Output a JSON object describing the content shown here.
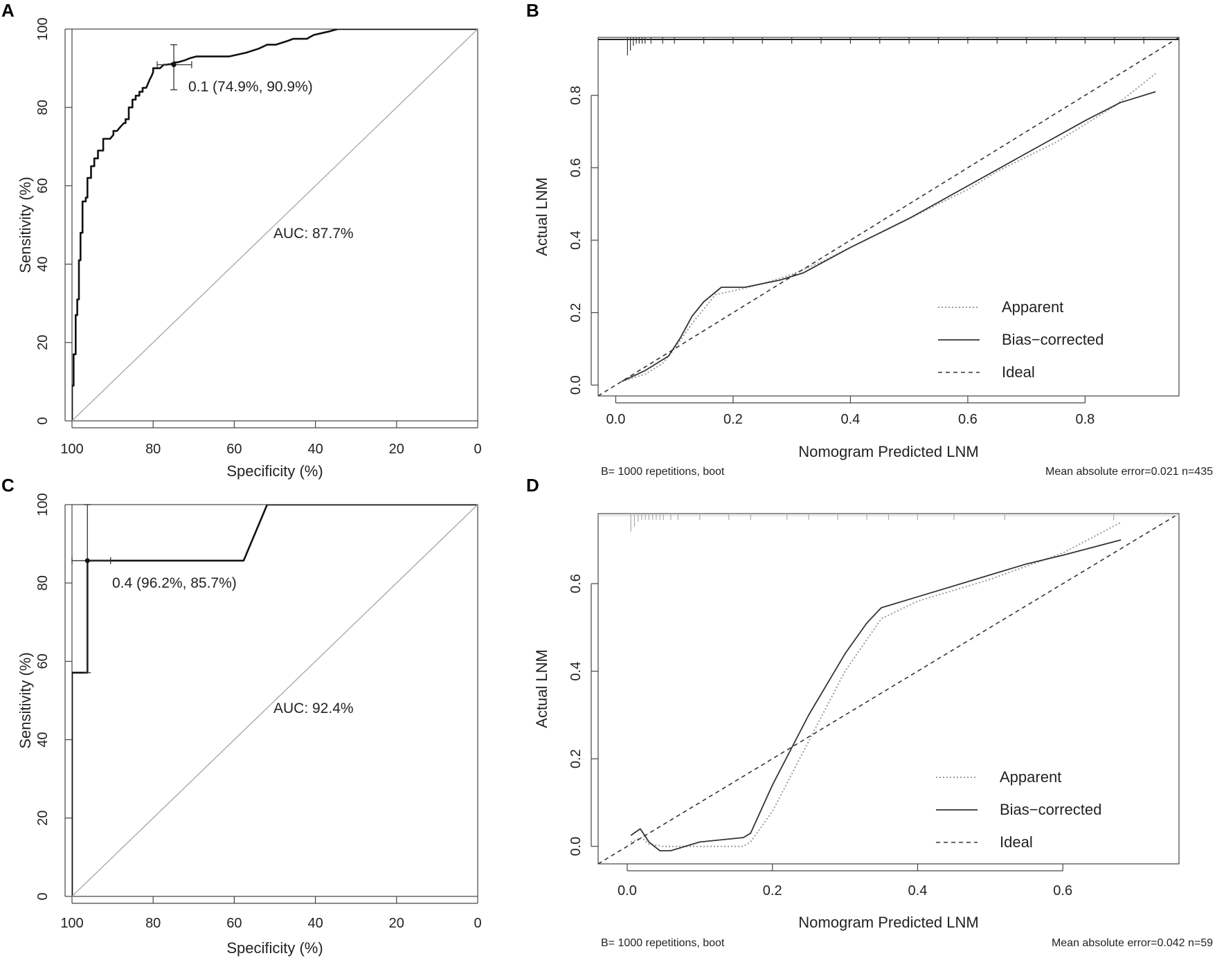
{
  "chart_data": [
    {
      "panel": "A",
      "type": "line",
      "xlabel": "Specificity (%)",
      "ylabel": "Sensitivity (%)",
      "xlim": [
        100,
        0
      ],
      "ylim": [
        0,
        100
      ],
      "x_ticks": [
        "100",
        "80",
        "60",
        "40",
        "20",
        "0"
      ],
      "y_ticks": [
        "0",
        "20",
        "40",
        "60",
        "80",
        "100"
      ],
      "series": [
        {
          "name": "ROC",
          "style": "solid",
          "x": [
            100,
            100,
            99.6,
            99.6,
            99.1,
            99.1,
            98.7,
            98.7,
            98.3,
            98.3,
            97.9,
            97.9,
            97.4,
            97.4,
            96.6,
            96.6,
            96.2,
            96.2,
            95.3,
            95.3,
            94.5,
            94.5,
            93.6,
            93.6,
            92.3,
            92.3,
            90.6,
            89.8,
            89.8,
            88.9,
            88.1,
            87.2,
            86.8,
            86.8,
            86.0,
            86.0,
            85.1,
            85.1,
            84.3,
            84.3,
            83.4,
            83.4,
            82.6,
            82.6,
            81.7,
            81.3,
            80.9,
            80.4,
            80.0,
            80.0,
            78.3,
            77.4,
            76.6,
            76.2,
            75.7,
            74.9,
            74.0,
            72.3,
            71.1,
            69.4,
            61.3,
            57.0,
            54.0,
            51.9,
            49.8,
            46.8,
            45.5,
            42.1,
            41.3,
            40.4,
            38.3,
            36.2,
            34.5,
            0
          ],
          "y": [
            0,
            9,
            9,
            17,
            17,
            27,
            27,
            31,
            31,
            41,
            41,
            48,
            48,
            56,
            56,
            57,
            57,
            62,
            62,
            65,
            65,
            67,
            67,
            69,
            69,
            72,
            72,
            73,
            74,
            74,
            75,
            76,
            76,
            77,
            77,
            80,
            80,
            82,
            82,
            83,
            83,
            84,
            84,
            85,
            85,
            86,
            87,
            88,
            89,
            90,
            90,
            90.9,
            90.9,
            91,
            91,
            91.5,
            91.5,
            92,
            92.5,
            93,
            93,
            94,
            95,
            96,
            96,
            97,
            97.5,
            97.5,
            98,
            98.5,
            99,
            99.5,
            100,
            100
          ]
        },
        {
          "name": "Reference",
          "style": "diagonal",
          "x": [
            100,
            0
          ],
          "y": [
            0,
            100
          ]
        }
      ],
      "threshold_point": {
        "x": 74.9,
        "y": 90.9,
        "x_ci": [
          79.0,
          70.5
        ],
        "y_ci": [
          84.5,
          96.0
        ]
      },
      "annotations": {
        "threshold": "0.1 (74.9%, 90.9%)",
        "auc": "AUC: 87.7%"
      }
    },
    {
      "panel": "B",
      "type": "line",
      "xlabel": "Nomogram Predicted LNM",
      "ylabel": "Actual LNM",
      "xlim": [
        -0.03,
        0.96
      ],
      "ylim": [
        -0.03,
        0.96
      ],
      "x_ticks": [
        "0.0",
        "0.2",
        "0.4",
        "0.6",
        "0.8"
      ],
      "y_ticks": [
        "0.0",
        "0.2",
        "0.4",
        "0.6",
        "0.8"
      ],
      "series": [
        {
          "name": "Apparent",
          "style": "dotted",
          "x": [
            0.01,
            0.05,
            0.08,
            0.1,
            0.13,
            0.17,
            0.2,
            0.25,
            0.3,
            0.35,
            0.4,
            0.45,
            0.5,
            0.55,
            0.6,
            0.65,
            0.7,
            0.75,
            0.8,
            0.85,
            0.92
          ],
          "y": [
            0.01,
            0.03,
            0.06,
            0.1,
            0.17,
            0.25,
            0.26,
            0.28,
            0.305,
            0.34,
            0.38,
            0.42,
            0.46,
            0.5,
            0.54,
            0.59,
            0.63,
            0.67,
            0.72,
            0.77,
            0.86
          ]
        },
        {
          "name": "Bias-corrected",
          "style": "solid",
          "x": [
            0.01,
            0.05,
            0.09,
            0.11,
            0.13,
            0.15,
            0.18,
            0.22,
            0.28,
            0.32,
            0.4,
            0.5,
            0.6,
            0.7,
            0.8,
            0.86,
            0.92
          ],
          "y": [
            0.01,
            0.04,
            0.08,
            0.13,
            0.19,
            0.23,
            0.27,
            0.27,
            0.29,
            0.31,
            0.38,
            0.46,
            0.55,
            0.64,
            0.73,
            0.78,
            0.81
          ]
        },
        {
          "name": "Ideal",
          "style": "dashed",
          "x": [
            -0.03,
            0.96
          ],
          "y": [
            -0.03,
            0.96
          ]
        }
      ],
      "rug": [
        0.02,
        0.025,
        0.03,
        0.035,
        0.04,
        0.045,
        0.05,
        0.06,
        0.08,
        0.1,
        0.15,
        0.2,
        0.25,
        0.3,
        0.35,
        0.4,
        0.45,
        0.5,
        0.55,
        0.6,
        0.65,
        0.7,
        0.75,
        0.8,
        0.85,
        0.9
      ],
      "legend": [
        "Apparent",
        "Bias−corrected",
        "Ideal"
      ],
      "notes": {
        "left": "B= 1000 repetitions, boot",
        "right": "Mean absolute error=0.021 n=435"
      }
    },
    {
      "panel": "C",
      "type": "line",
      "xlabel": "Specificity (%)",
      "ylabel": "Sensitivity (%)",
      "xlim": [
        100,
        0
      ],
      "ylim": [
        0,
        100
      ],
      "x_ticks": [
        "100",
        "80",
        "60",
        "40",
        "20",
        "0"
      ],
      "y_ticks": [
        "0",
        "20",
        "40",
        "60",
        "80",
        "100"
      ],
      "series": [
        {
          "name": "ROC",
          "style": "solid",
          "x": [
            100,
            100,
            96.2,
            96.2,
            57.7,
            51.9,
            0
          ],
          "y": [
            0,
            57.1,
            57.1,
            85.7,
            85.7,
            100,
            100
          ]
        },
        {
          "name": "Reference",
          "style": "diagonal",
          "x": [
            100,
            0
          ],
          "y": [
            0,
            100
          ]
        }
      ],
      "threshold_point": {
        "x": 96.2,
        "y": 85.7,
        "x_ci": [
          100,
          90.5
        ],
        "y_ci": [
          57.1,
          100
        ]
      },
      "annotations": {
        "threshold": "0.4 (96.2%, 85.7%)",
        "auc": "AUC: 92.4%"
      }
    },
    {
      "panel": "D",
      "type": "line",
      "xlabel": "Nomogram Predicted LNM",
      "ylabel": "Actual LNM",
      "xlim": [
        -0.04,
        0.76
      ],
      "ylim": [
        -0.04,
        0.76
      ],
      "x_ticks": [
        "0.0",
        "0.2",
        "0.4",
        "0.6"
      ],
      "y_ticks": [
        "0.0",
        "0.2",
        "0.4",
        "0.6"
      ],
      "series": [
        {
          "name": "Apparent",
          "style": "dotted",
          "x": [
            0.005,
            0.02,
            0.03,
            0.05,
            0.1,
            0.16,
            0.17,
            0.2,
            0.25,
            0.3,
            0.35,
            0.4,
            0.5,
            0.55,
            0.6,
            0.68
          ],
          "y": [
            0.01,
            0.02,
            0.005,
            0.0,
            0.0,
            0.0,
            0.01,
            0.08,
            0.24,
            0.4,
            0.52,
            0.56,
            0.61,
            0.64,
            0.67,
            0.74
          ]
        },
        {
          "name": "Bias-corrected",
          "style": "solid",
          "x": [
            0.005,
            0.018,
            0.03,
            0.045,
            0.06,
            0.1,
            0.16,
            0.17,
            0.2,
            0.25,
            0.3,
            0.33,
            0.35,
            0.4,
            0.5,
            0.55,
            0.6,
            0.68
          ],
          "y": [
            0.025,
            0.04,
            0.01,
            -0.01,
            -0.01,
            0.01,
            0.02,
            0.03,
            0.14,
            0.3,
            0.44,
            0.51,
            0.545,
            0.57,
            0.62,
            0.645,
            0.665,
            0.7
          ]
        },
        {
          "name": "Ideal",
          "style": "dashed",
          "x": [
            -0.04,
            0.76
          ],
          "y": [
            -0.04,
            0.76
          ]
        }
      ],
      "rug": [
        0.005,
        0.01,
        0.015,
        0.02,
        0.025,
        0.03,
        0.035,
        0.04,
        0.045,
        0.05,
        0.06,
        0.07,
        0.1,
        0.14,
        0.17,
        0.22,
        0.25,
        0.29,
        0.33,
        0.36,
        0.4,
        0.45,
        0.52,
        0.67
      ],
      "legend": [
        "Apparent",
        "Bias−corrected",
        "Ideal"
      ],
      "notes": {
        "left": "B= 1000 repetitions, boot",
        "right": "Mean absolute error=0.042 n=59"
      }
    }
  ]
}
